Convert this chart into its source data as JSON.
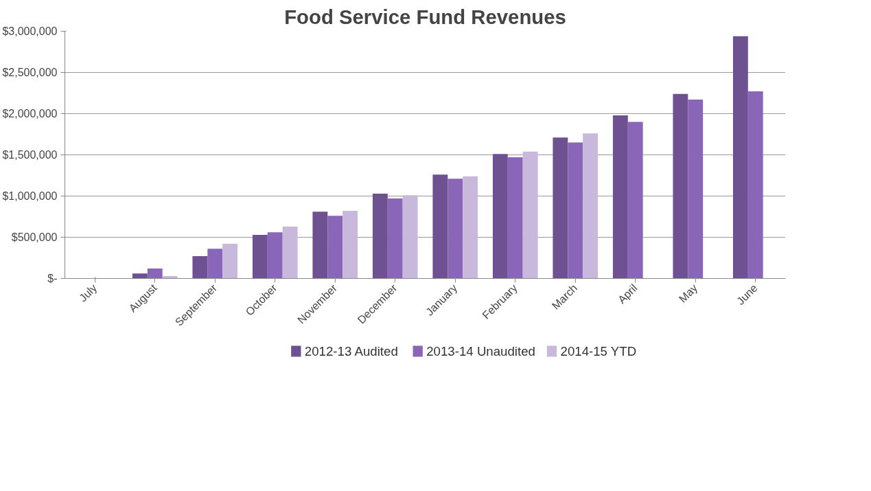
{
  "chart_data": {
    "type": "bar",
    "title": "Food Service Fund Revenues",
    "categories": [
      "July",
      "August",
      "September",
      "October",
      "November",
      "December",
      "January",
      "February",
      "March",
      "April",
      "May",
      "June"
    ],
    "series": [
      {
        "name": "2012-13 Audited",
        "color": "#6e5190",
        "values": [
          0,
          60000,
          270000,
          530000,
          810000,
          1030000,
          1260000,
          1510000,
          1710000,
          1980000,
          2240000,
          2940000
        ]
      },
      {
        "name": "2013-14 Unaudited",
        "color": "#8a66b8",
        "values": [
          0,
          120000,
          360000,
          560000,
          760000,
          970000,
          1210000,
          1470000,
          1650000,
          1900000,
          2170000,
          2270000
        ]
      },
      {
        "name": "2014-15 YTD",
        "color": "#c8b8dc",
        "values": [
          0,
          30000,
          420000,
          630000,
          820000,
          1010000,
          1240000,
          1540000,
          1760000,
          null,
          null,
          null
        ]
      }
    ],
    "ylim": [
      0,
      3000000
    ],
    "yticks": [
      {
        "value": 0,
        "label": "$-"
      },
      {
        "value": 500000,
        "label": "$500,000"
      },
      {
        "value": 1000000,
        "label": "$1,000,000"
      },
      {
        "value": 1500000,
        "label": "$1,500,000"
      },
      {
        "value": 2000000,
        "label": "$2,000,000"
      },
      {
        "value": 2500000,
        "label": "$2,500,000"
      },
      {
        "value": 3000000,
        "label": "$3,000,000"
      }
    ],
    "grid": "y",
    "legend": "bottom"
  }
}
